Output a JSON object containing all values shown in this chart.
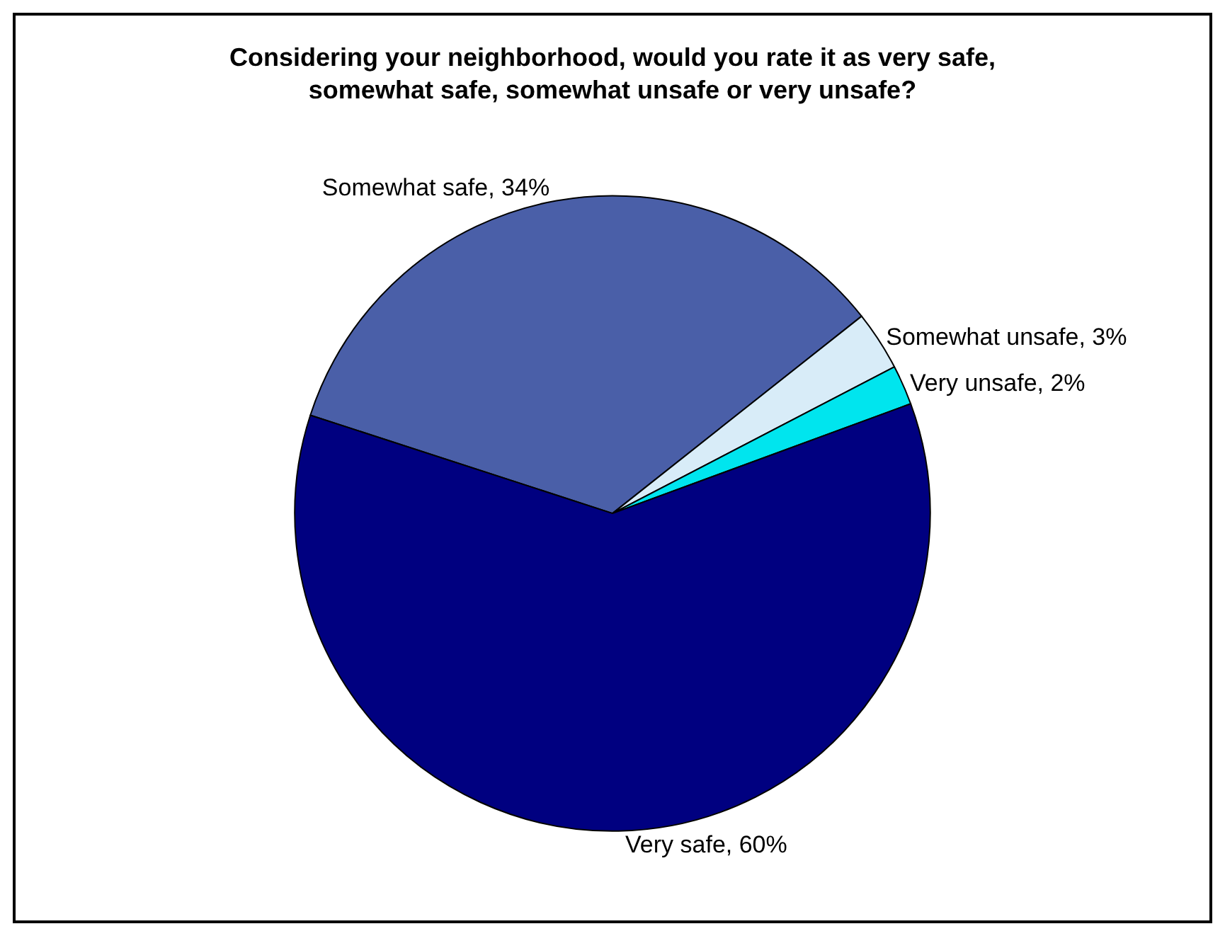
{
  "chart_data": {
    "type": "pie",
    "title": "Considering your neighborhood, would you rate it as very safe, somewhat safe, somewhat unsafe or very unsafe?",
    "categories": [
      "Somewhat safe, 34%",
      "Somewhat unsafe, 3%",
      "Very unsafe, 2%",
      "Very safe, 60%"
    ],
    "values": [
      34,
      3,
      2,
      60
    ],
    "colors": [
      "#4a5fa8",
      "#d8ecf8",
      "#00e5ee",
      "#000080"
    ],
    "legend": false
  }
}
